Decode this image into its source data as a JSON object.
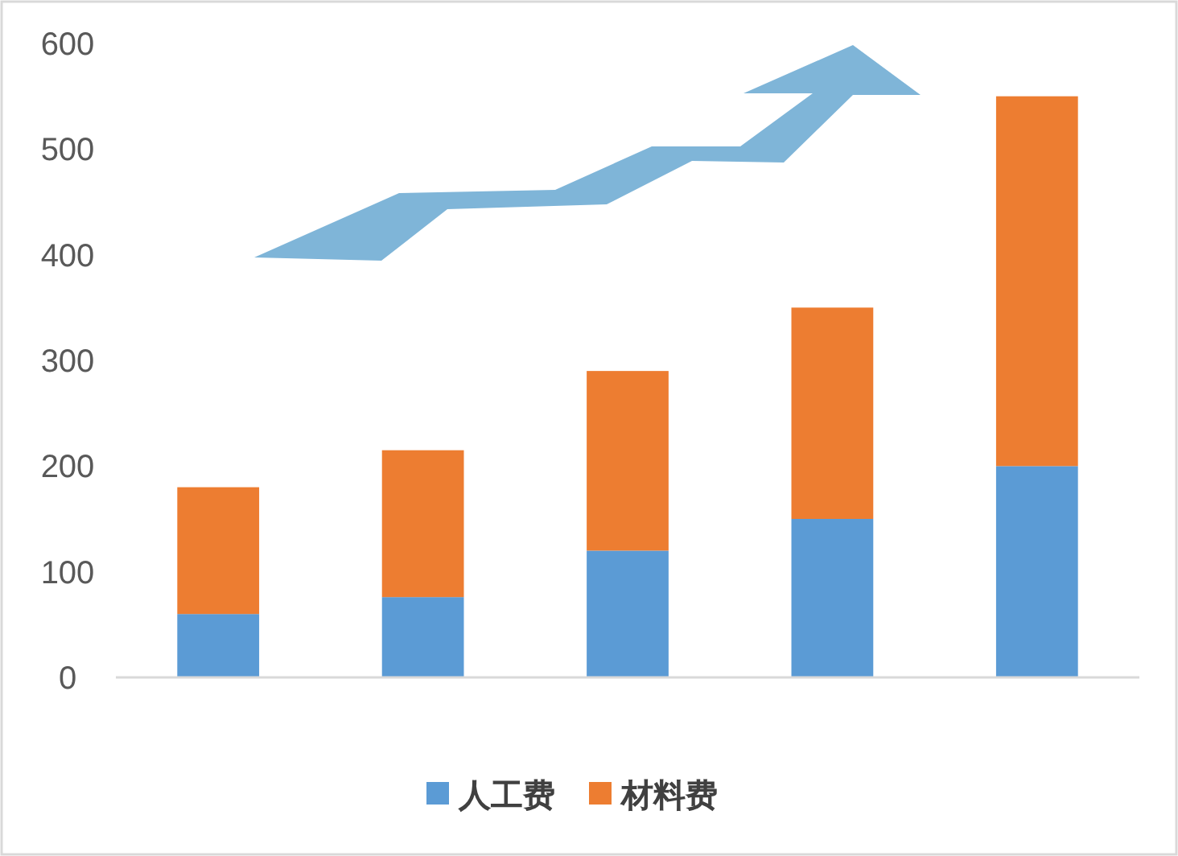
{
  "chart_data": {
    "type": "bar",
    "stacked": true,
    "categories": [
      null,
      null,
      null,
      null,
      null
    ],
    "series": [
      {
        "name": "人工费",
        "color": "#5b9bd5",
        "values": [
          60,
          76,
          120,
          150,
          200
        ]
      },
      {
        "name": "材料费",
        "color": "#ed7d31",
        "values": [
          120,
          139,
          170,
          200,
          350
        ]
      }
    ],
    "ylim": [
      0,
      600
    ],
    "yticks": [
      0,
      100,
      200,
      300,
      400,
      500,
      600
    ],
    "legend": "bottom",
    "grid": false
  }
}
